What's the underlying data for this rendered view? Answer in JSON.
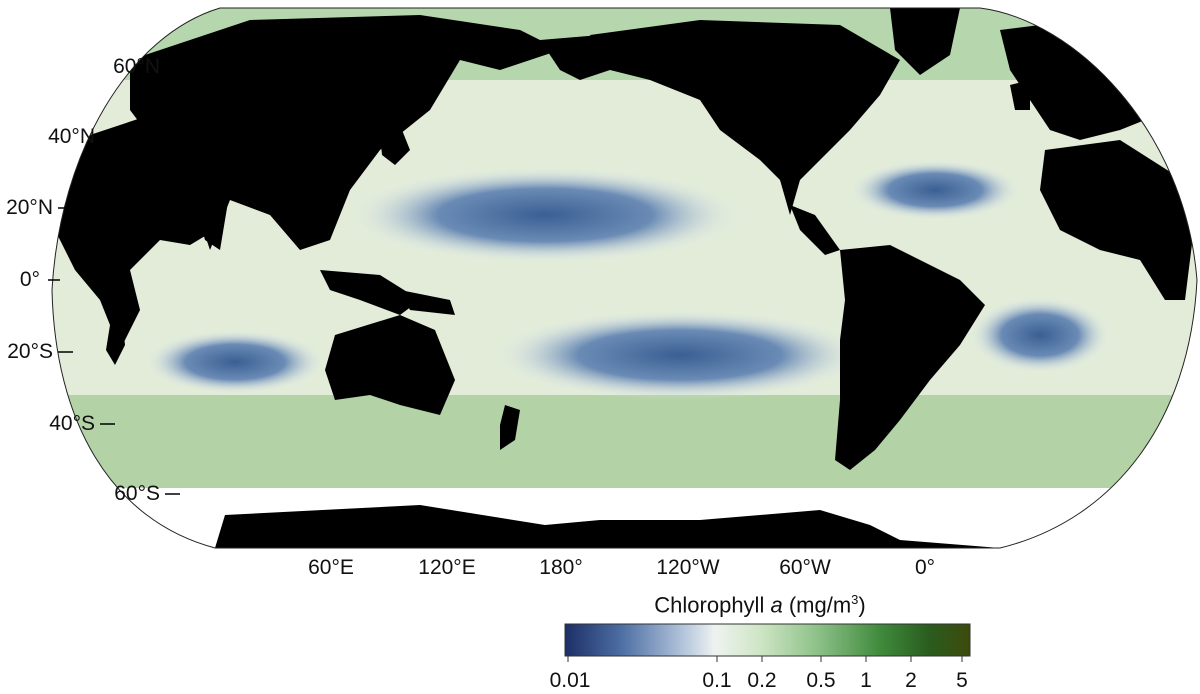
{
  "map": {
    "projection": "Robinson",
    "central_meridian": "150°W",
    "latitude_labels": [
      "60°N",
      "40°N",
      "20°N",
      "0°",
      "20°S",
      "40°S",
      "60°S"
    ],
    "longitude_labels": [
      "60°E",
      "120°E",
      "180°",
      "120°W",
      "60°W",
      "0°"
    ],
    "land_color": "#000000",
    "no_data_color": "#ffffff",
    "oligotrophic_gyre_color": "#3a5f93",
    "coastal_color": "#3e8a3e"
  },
  "colorbar": {
    "title_prefix": "Chlorophyll ",
    "title_var": "a",
    "title_unit": " (mg/m",
    "title_unit_sup": "3",
    "title_close": ")",
    "scale": "log",
    "range": [
      0.01,
      5
    ],
    "ticks": [
      "0.01",
      "0.1",
      "0.2",
      "0.5",
      "1",
      "2",
      "5"
    ],
    "colors": [
      "#1c2f66",
      "#4d6fa3",
      "#b9c9de",
      "#eef3f0",
      "#cfe6c6",
      "#8fc28a",
      "#3f8a3c",
      "#2a5c1e",
      "#3e4a0c"
    ]
  }
}
